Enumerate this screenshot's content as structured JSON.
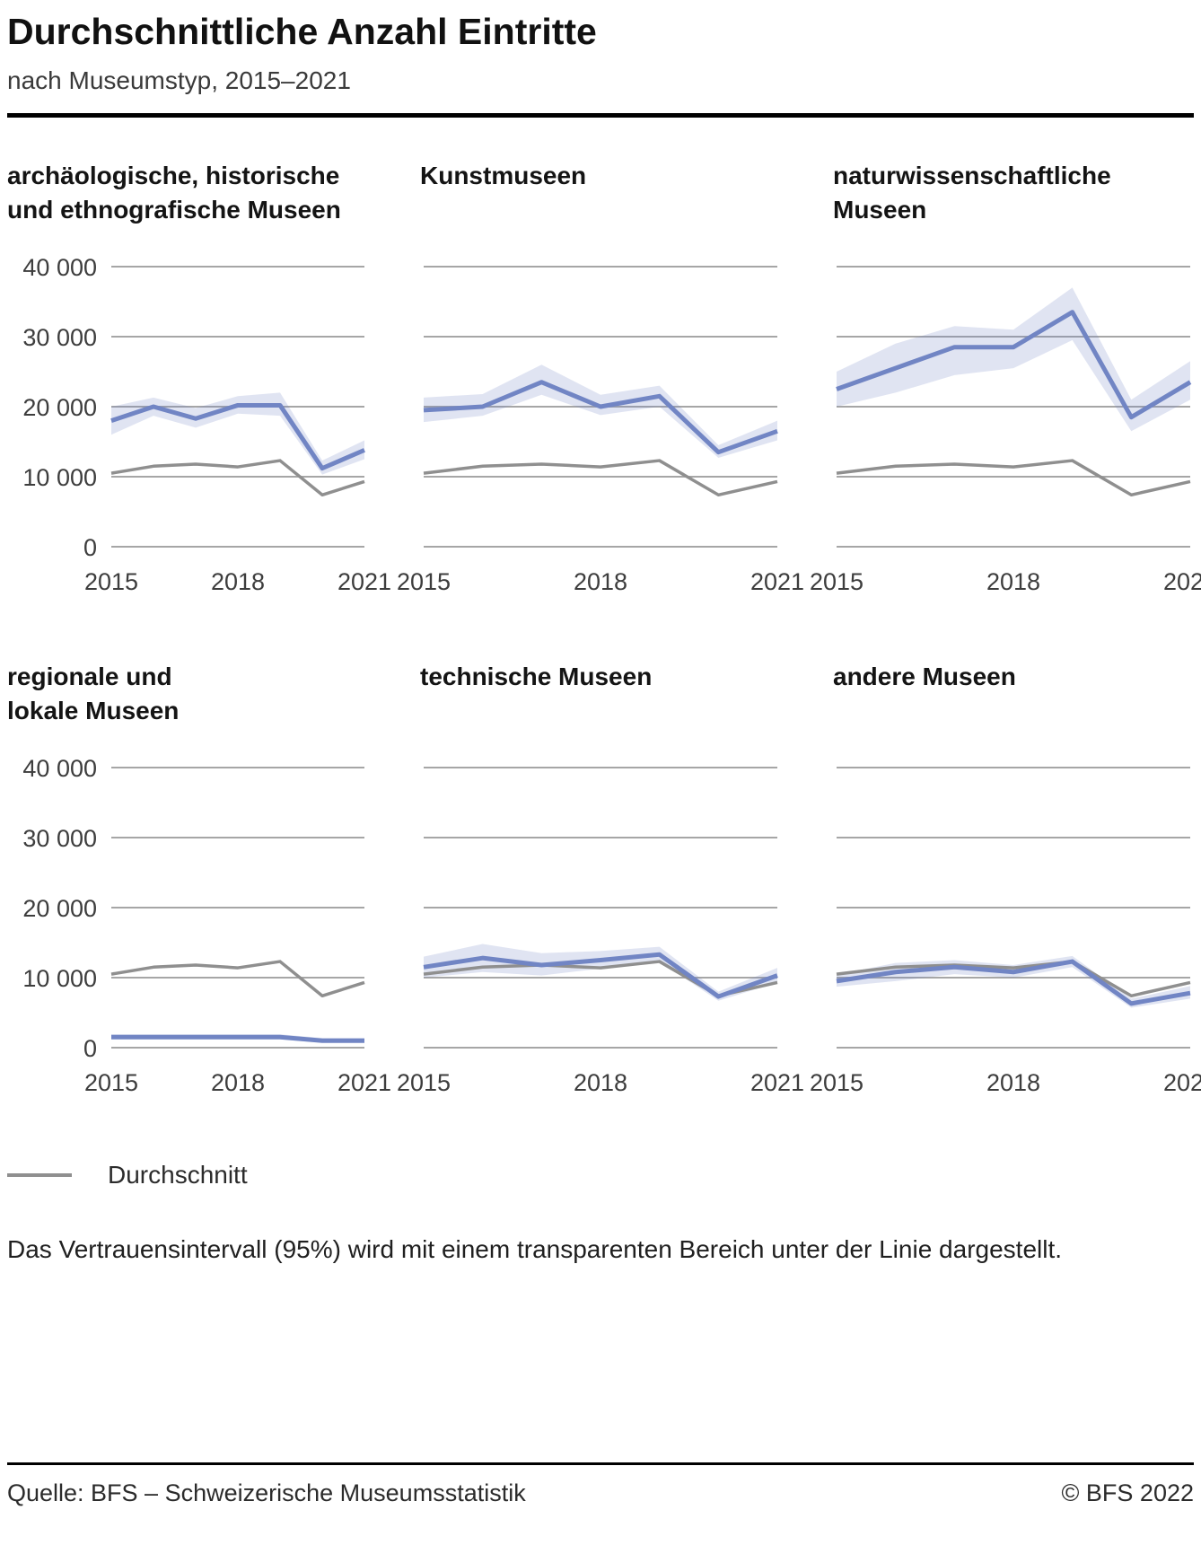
{
  "header": {
    "title": "Durchschnittliche Anzahl Eintritte",
    "subtitle": "nach Museumstyp, 2015–2021"
  },
  "legend": {
    "label": "Durchschnitt"
  },
  "note": "Das Vertrauensintervall (95%) wird mit einem transparenten Bereich unter der Linie dargestellt.",
  "footer": {
    "source": "Quelle: BFS – Schweizerische Museumsstatistik",
    "copyright": "© BFS 2022"
  },
  "colors": {
    "series": "#7185c4",
    "band": "#7185c4",
    "average": "#8f8f8f",
    "grid": "#a6a6a6"
  },
  "chart_data": {
    "type": "line",
    "x": [
      2015,
      2016,
      2017,
      2018,
      2019,
      2020,
      2021
    ],
    "x_ticks": [
      2015,
      2018,
      2021
    ],
    "ylim": [
      0,
      40000
    ],
    "y_ticks": [
      0,
      10000,
      20000,
      30000,
      40000
    ],
    "y_tick_labels": [
      "0",
      "10 000",
      "20 000",
      "30 000",
      "40 000"
    ],
    "average": {
      "name": "Durchschnitt",
      "values": [
        10500,
        11500,
        11800,
        11400,
        12300,
        7400,
        9300
      ]
    },
    "panels": [
      {
        "title": "archäologische, historische und ethnografische Museen",
        "title_lines": [
          "archäologische, historische",
          "und ethnografische Museen"
        ],
        "values": [
          18000,
          20000,
          18300,
          20200,
          20200,
          11200,
          13800
        ],
        "ci_lower": [
          16000,
          18700,
          17000,
          19000,
          18700,
          10300,
          12500
        ],
        "ci_upper": [
          20000,
          21300,
          19800,
          21500,
          22000,
          12300,
          15200
        ],
        "show_y_labels": true
      },
      {
        "title": "Kunstmuseen",
        "title_lines": [
          "Kunstmuseen"
        ],
        "values": [
          19500,
          20000,
          23500,
          20000,
          21500,
          13500,
          16500
        ],
        "ci_lower": [
          17800,
          18700,
          21700,
          18800,
          20000,
          12700,
          15200
        ],
        "ci_upper": [
          21300,
          21800,
          26000,
          21700,
          23000,
          14500,
          18000
        ],
        "show_y_labels": false
      },
      {
        "title": "naturwissenschaftliche Museen",
        "title_lines": [
          "naturwissenschaftliche",
          "Museen"
        ],
        "values": [
          22500,
          25500,
          28500,
          28500,
          33500,
          18500,
          23500
        ],
        "ci_lower": [
          20000,
          22000,
          24500,
          25500,
          29500,
          16500,
          21000
        ],
        "ci_upper": [
          25000,
          29000,
          31500,
          31000,
          37000,
          21000,
          26500
        ],
        "show_y_labels": false
      },
      {
        "title": "regionale und lokale Museen",
        "title_lines": [
          "regionale und",
          "lokale Museen"
        ],
        "values": [
          1500,
          1500,
          1500,
          1500,
          1500,
          1000,
          1000
        ],
        "ci_lower": [
          1200,
          1200,
          1200,
          1200,
          1200,
          700,
          700
        ],
        "ci_upper": [
          1900,
          1900,
          1900,
          1900,
          1900,
          1400,
          1400
        ],
        "show_y_labels": true
      },
      {
        "title": "technische Museen",
        "title_lines": [
          "technische Museen"
        ],
        "values": [
          11500,
          12800,
          11800,
          12500,
          13300,
          7300,
          10300
        ],
        "ci_lower": [
          10000,
          10800,
          10300,
          11300,
          12300,
          6700,
          9300
        ],
        "ci_upper": [
          13000,
          14800,
          13500,
          13800,
          14400,
          8000,
          11400
        ],
        "show_y_labels": false
      },
      {
        "title": "andere Museen",
        "title_lines": [
          "andere Museen"
        ],
        "values": [
          9500,
          10800,
          11500,
          10800,
          12300,
          6300,
          7800
        ],
        "ci_lower": [
          8700,
          9500,
          10500,
          10000,
          11500,
          5700,
          7000
        ],
        "ci_upper": [
          10400,
          12100,
          12500,
          11800,
          13100,
          7000,
          8800
        ],
        "show_y_labels": false
      }
    ]
  }
}
